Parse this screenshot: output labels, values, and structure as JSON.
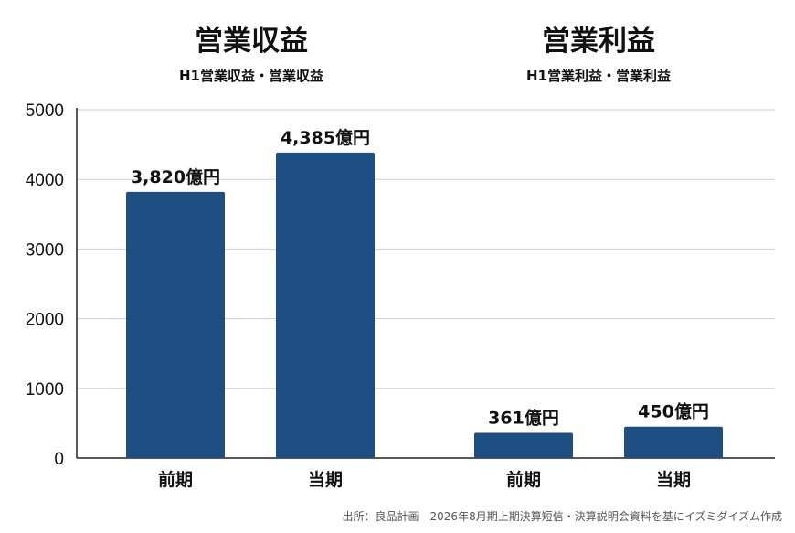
{
  "chart_data": {
    "type": "bar",
    "ylim": [
      0,
      5000
    ],
    "yticks": [
      "0",
      "1000",
      "2000",
      "3000",
      "4000",
      "5000"
    ],
    "grid": true,
    "bar_color": "#1e4f82",
    "groups": [
      {
        "title": "営業収益",
        "subtitle": "H1営業収益・営業収益",
        "categories": [
          "前期",
          "当期"
        ],
        "values": [
          3820,
          4385
        ],
        "labels": [
          "3,820億円",
          "4,385億円"
        ]
      },
      {
        "title": "営業利益",
        "subtitle": "H1営業利益・営業利益",
        "categories": [
          "前期",
          "当期"
        ],
        "values": [
          361,
          450
        ],
        "labels": [
          "361億円",
          "450億円"
        ]
      }
    ]
  },
  "source": "出所：良品計画　2026年8月期上期決算短信・決算説明会資料を基にイズミダイズム作成"
}
